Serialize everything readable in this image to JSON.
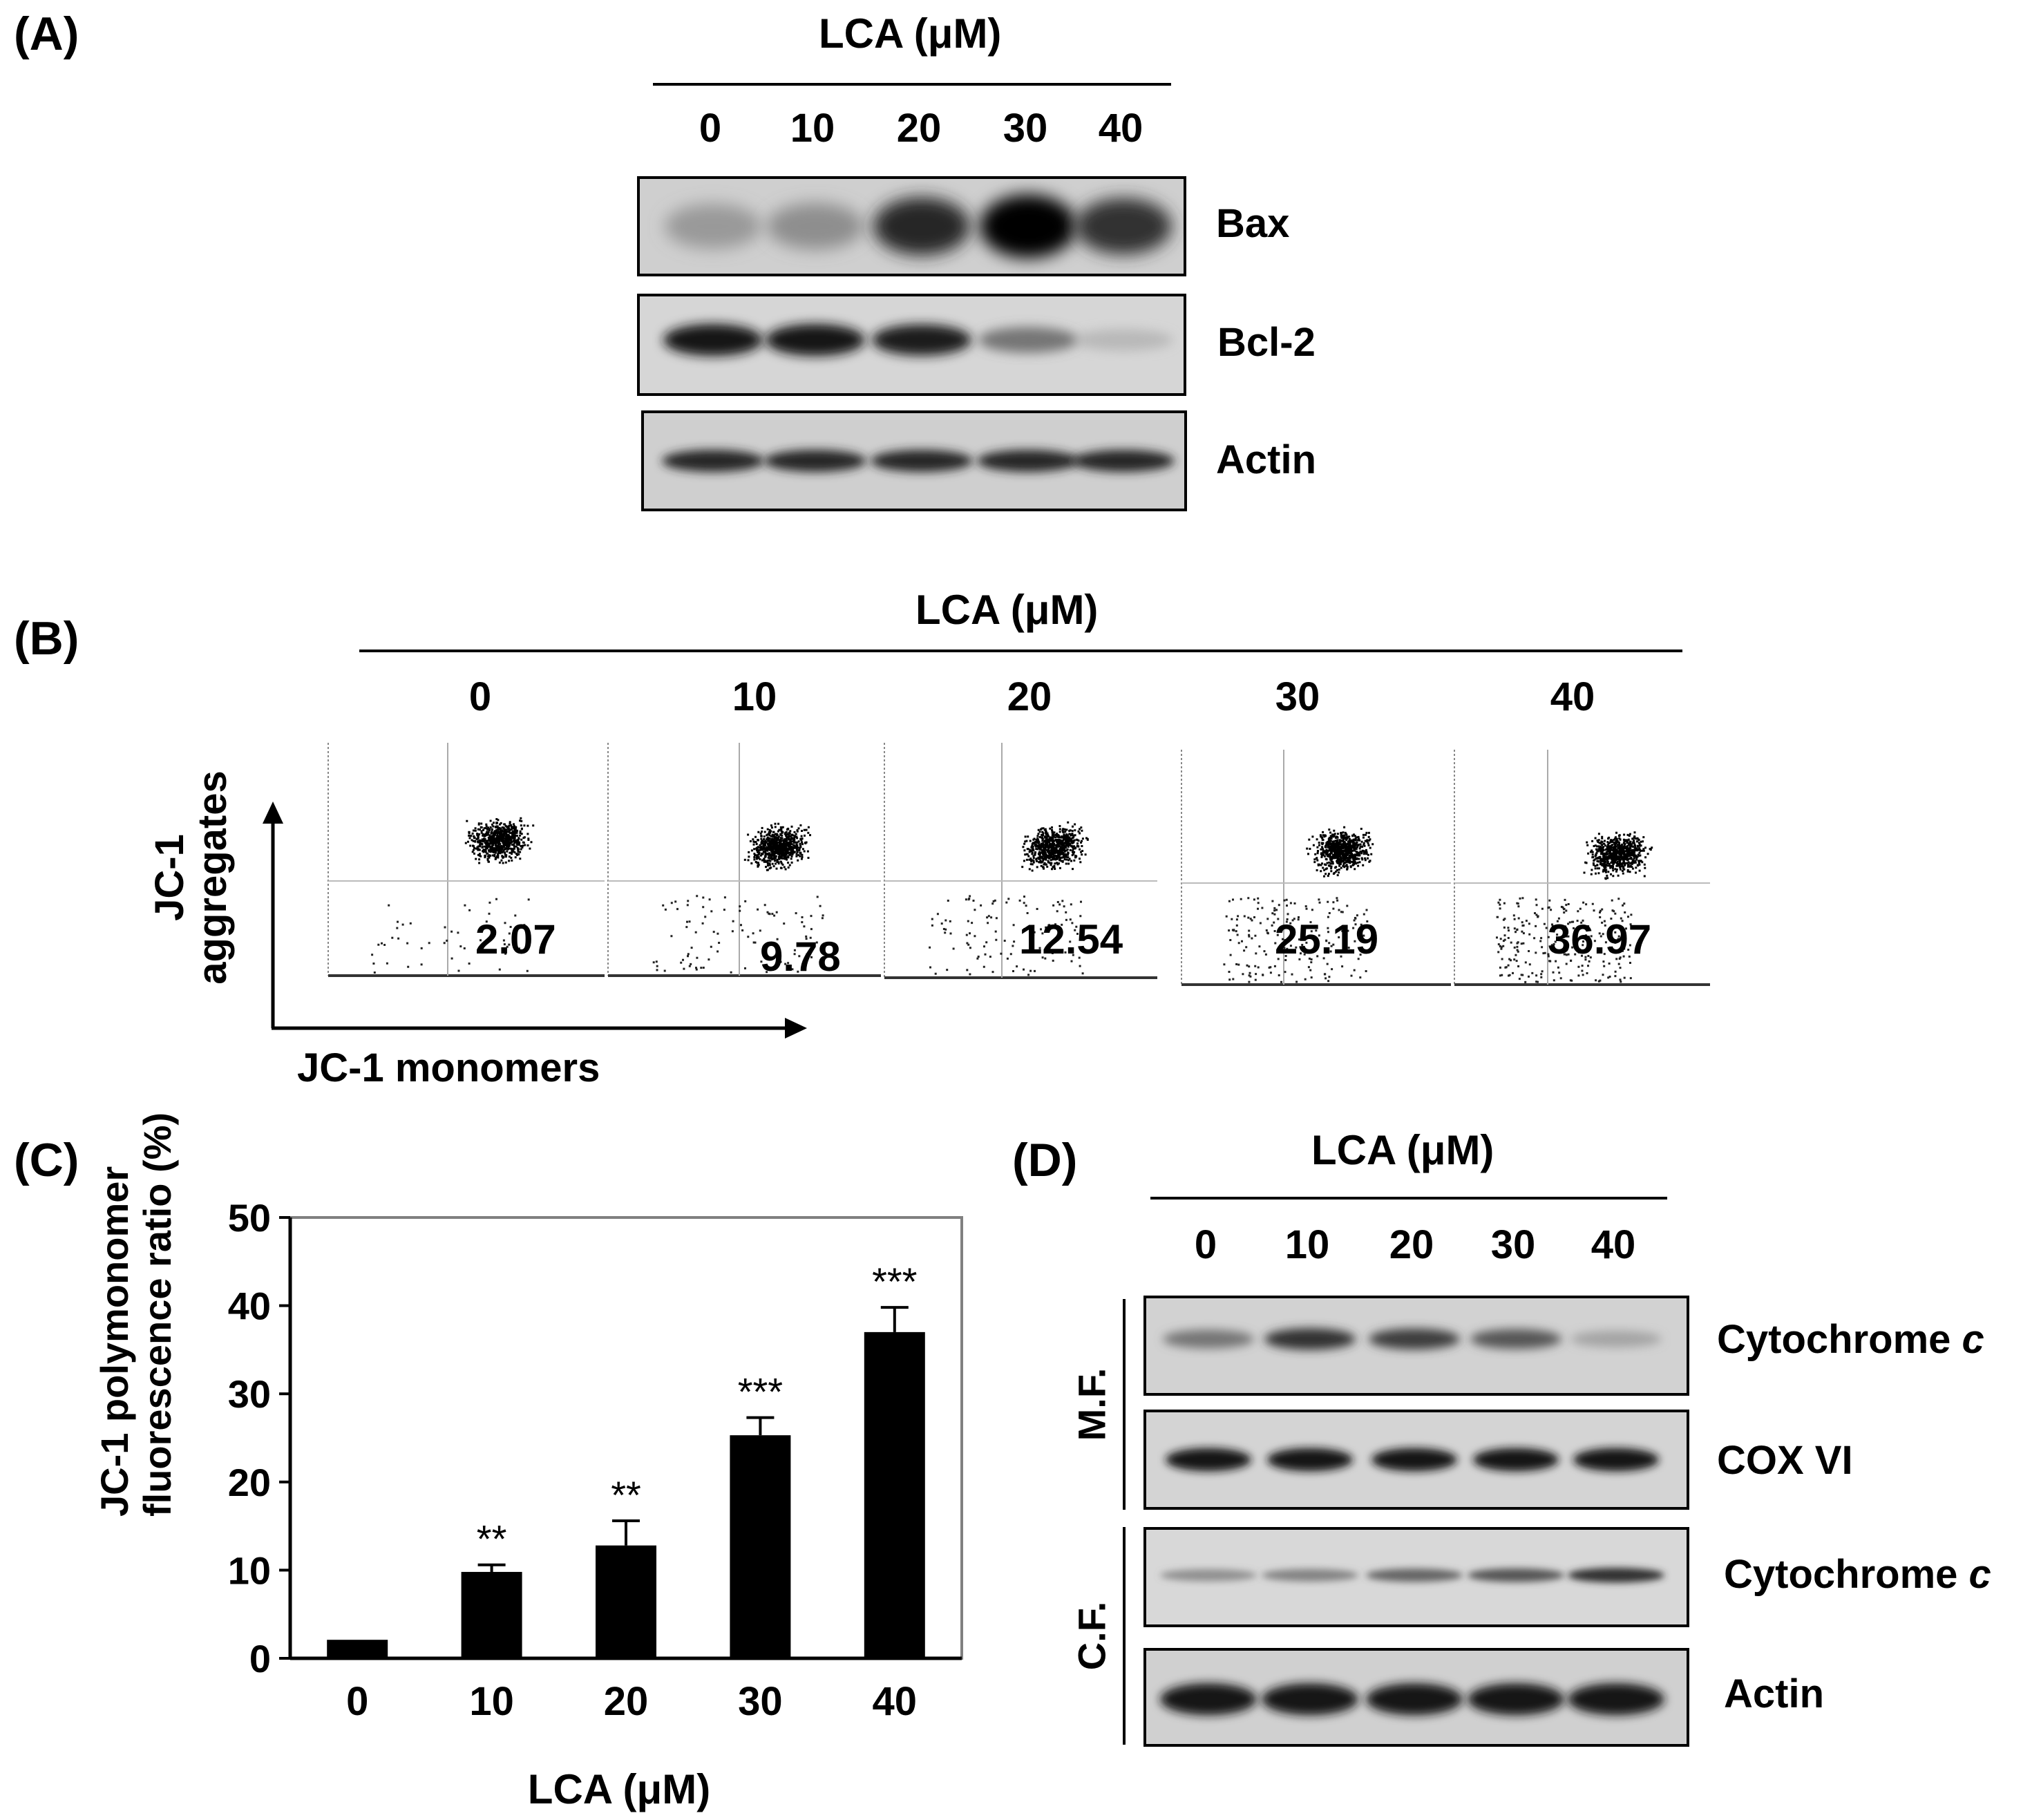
{
  "panel_a": {
    "label": "(A)",
    "header": "LCA (μM)",
    "lanes": [
      "0",
      "10",
      "20",
      "30",
      "40"
    ],
    "proteins": [
      "Bax",
      "Bcl-2",
      "Actin"
    ],
    "band_intensity": {
      "Bax": [
        0.35,
        0.4,
        0.8,
        1.0,
        0.75
      ],
      "Bcl-2": [
        0.9,
        0.9,
        0.85,
        0.5,
        0.2
      ],
      "Actin": [
        0.8,
        0.8,
        0.8,
        0.8,
        0.8
      ]
    }
  },
  "panel_b": {
    "label": "(B)",
    "header": "LCA (μM)",
    "lanes": [
      "0",
      "10",
      "20",
      "30",
      "40"
    ],
    "values": [
      "2.07",
      "9.78",
      "12.54",
      "25.19",
      "36.97"
    ],
    "y_axis_label_line1": "JC-1",
    "y_axis_label_line2": "aggregates",
    "x_axis_label": "JC-1 monomers"
  },
  "panel_c": {
    "label": "(C)",
    "chart_data": {
      "type": "bar",
      "categories": [
        "0",
        "10",
        "20",
        "30",
        "40"
      ],
      "values": [
        2.1,
        9.8,
        12.8,
        25.3,
        37.0
      ],
      "errors": [
        0,
        0.8,
        2.8,
        2.0,
        2.8
      ],
      "significance": [
        "",
        "**",
        "**",
        "***",
        "***"
      ],
      "xlabel": "LCA (μM)",
      "ylabel_line1": "JC-1 polymonomer",
      "ylabel_line2": "fluorescence ratio (%)",
      "ylim": [
        0,
        50
      ],
      "yticks": [
        "0",
        "10",
        "20",
        "30",
        "40",
        "50"
      ],
      "bar_color": "#000000"
    }
  },
  "panel_d": {
    "label": "(D)",
    "header": "LCA (μM)",
    "lanes": [
      "0",
      "10",
      "20",
      "30",
      "40"
    ],
    "fractions": [
      "M.F.",
      "C.F."
    ],
    "proteins": [
      "Cytochrome",
      "COX VI",
      "Cytochrome",
      "Actin"
    ],
    "protein_suffix": "c",
    "band_intensity": {
      "mf_cyto": [
        0.5,
        0.75,
        0.7,
        0.6,
        0.3
      ],
      "cox": [
        0.9,
        0.9,
        0.9,
        0.9,
        0.9
      ],
      "cf_cyto": [
        0.4,
        0.45,
        0.55,
        0.6,
        0.75
      ],
      "actin": [
        0.9,
        0.9,
        0.9,
        0.9,
        0.9
      ]
    }
  }
}
